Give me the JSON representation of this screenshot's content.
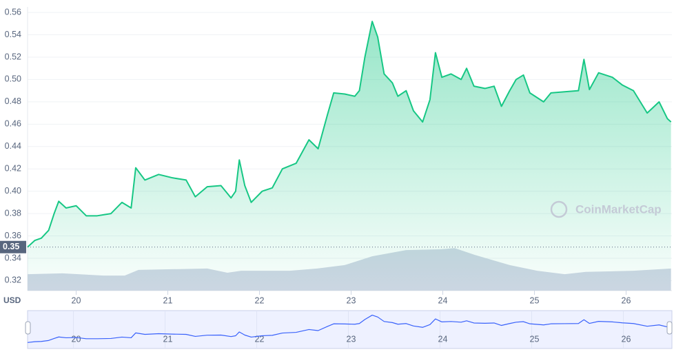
{
  "chart_data": {
    "type": "area",
    "currency_label": "USD",
    "watermark": "CoinMarketCap",
    "reference_line": 0.35,
    "color": "#16c784",
    "grid": true,
    "xlim": [
      19.47,
      26.5
    ],
    "ylim": [
      0.311,
      0.565
    ],
    "xticks": [
      20,
      21,
      22,
      23,
      24,
      25,
      26
    ],
    "yticks": [
      0.32,
      0.34,
      0.36,
      0.38,
      {
        "value": 0.4,
        "label": "0.40"
      },
      0.42,
      0.44,
      0.46,
      0.48,
      {
        "value": 0.5,
        "label": "0.50"
      },
      0.52,
      0.54,
      0.56
    ],
    "x": [
      19.47,
      19.55,
      19.62,
      19.7,
      19.76,
      19.81,
      19.89,
      20.0,
      20.11,
      20.23,
      20.38,
      20.5,
      20.6,
      20.65,
      20.75,
      20.9,
      21.05,
      21.2,
      21.3,
      21.43,
      21.58,
      21.69,
      21.74,
      21.78,
      21.84,
      21.91,
      22.03,
      22.14,
      22.25,
      22.4,
      22.54,
      22.64,
      22.74,
      22.81,
      22.93,
      23.04,
      23.09,
      23.15,
      23.23,
      23.29,
      23.36,
      23.45,
      23.51,
      23.6,
      23.68,
      23.78,
      23.86,
      23.92,
      23.99,
      24.09,
      24.2,
      24.26,
      24.34,
      24.46,
      24.56,
      24.64,
      24.73,
      24.8,
      24.88,
      24.95,
      25.1,
      25.18,
      25.33,
      25.48,
      25.54,
      25.6,
      25.7,
      25.85,
      25.96,
      26.08,
      26.23,
      26.36,
      26.45,
      26.49
    ],
    "values": [
      0.35,
      0.356,
      0.358,
      0.365,
      0.38,
      0.391,
      0.385,
      0.387,
      0.378,
      0.378,
      0.38,
      0.39,
      0.385,
      0.421,
      0.41,
      0.415,
      0.412,
      0.41,
      0.395,
      0.404,
      0.405,
      0.394,
      0.4,
      0.428,
      0.405,
      0.39,
      0.4,
      0.403,
      0.42,
      0.425,
      0.446,
      0.438,
      0.468,
      0.488,
      0.487,
      0.485,
      0.49,
      0.52,
      0.552,
      0.538,
      0.505,
      0.497,
      0.485,
      0.49,
      0.472,
      0.462,
      0.482,
      0.524,
      0.502,
      0.505,
      0.5,
      0.51,
      0.494,
      0.492,
      0.494,
      0.476,
      0.49,
      0.5,
      0.504,
      0.488,
      0.48,
      0.488,
      0.489,
      0.49,
      0.518,
      0.491,
      0.506,
      0.502,
      0.495,
      0.49,
      0.47,
      0.48,
      0.465,
      0.462
    ],
    "volume": {
      "color": "#cfd6e4",
      "y2lim": [
        0,
        100
      ],
      "x": [
        19.47,
        19.85,
        20.3,
        20.53,
        20.68,
        21.43,
        21.65,
        21.8,
        22.33,
        22.63,
        22.93,
        23.23,
        23.6,
        23.98,
        24.13,
        24.35,
        24.73,
        25.03,
        25.33,
        25.56,
        26.08,
        26.49
      ],
      "values": [
        5.8,
        6.1,
        5.3,
        5.3,
        7.3,
        7.8,
        6.3,
        7.0,
        7.0,
        7.8,
        9.0,
        12.1,
        14.3,
        14.6,
        15.0,
        12.6,
        9.0,
        7.0,
        5.8,
        6.6,
        7.0,
        7.8
      ]
    }
  }
}
